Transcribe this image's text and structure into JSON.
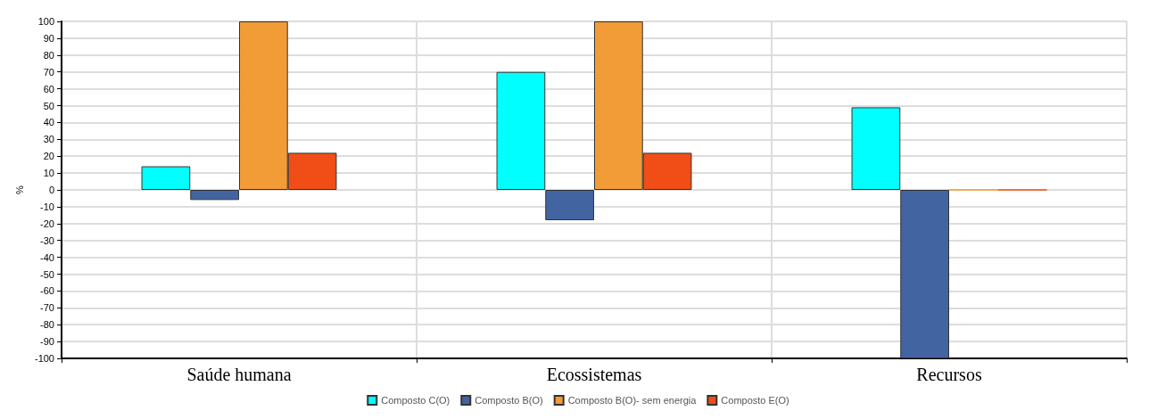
{
  "chart_data": {
    "type": "bar",
    "ylabel": "%",
    "categories": [
      "Saúde humana",
      "Ecossistemas",
      "Recursos"
    ],
    "series": [
      {
        "name": "Composto C(O)",
        "color": "#00ffff",
        "values": [
          14,
          70,
          49
        ]
      },
      {
        "name": "Composto B(O)",
        "color": "#4264a0",
        "values": [
          -6,
          -18,
          -100
        ]
      },
      {
        "name": "Composto B(O)- sem energia",
        "color": "#f19c36",
        "values": [
          100,
          100,
          0
        ]
      },
      {
        "name": "Composto E(O)",
        "color": "#f04e16",
        "values": [
          22,
          22,
          0
        ]
      }
    ],
    "ylim": [
      -100,
      100
    ],
    "yticks": [
      -100,
      -90,
      -80,
      -70,
      -60,
      -50,
      -40,
      -30,
      -20,
      -10,
      0,
      10,
      20,
      30,
      40,
      50,
      60,
      70,
      80,
      90,
      100
    ],
    "grid": true,
    "legend": "bottom"
  }
}
